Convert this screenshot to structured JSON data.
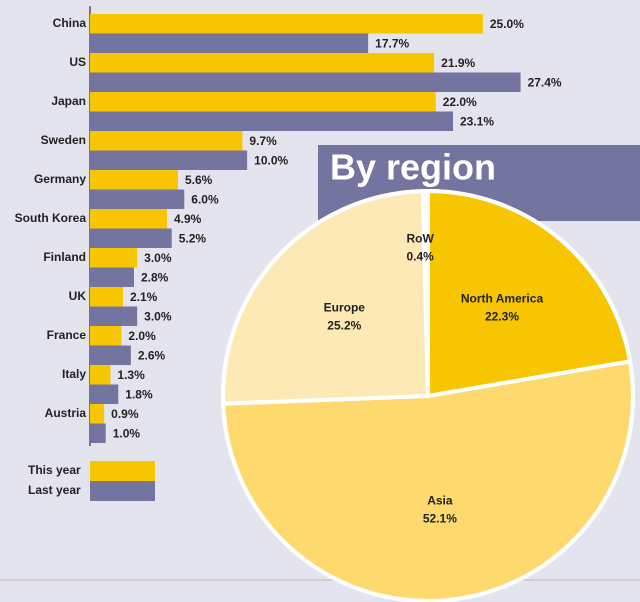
{
  "chart_data": [
    {
      "type": "bar",
      "orientation": "horizontal",
      "categories": [
        "China",
        "US",
        "Japan",
        "Sweden",
        "Germany",
        "South Korea",
        "Finland",
        "UK",
        "France",
        "Italy",
        "Austria"
      ],
      "series": [
        {
          "name": "This year",
          "color": "#f7c600",
          "values": [
            25.0,
            21.9,
            22.0,
            9.7,
            5.6,
            4.9,
            3.0,
            2.1,
            2.0,
            1.3,
            0.9
          ],
          "value_labels": [
            "25.0%",
            "21.9%",
            "22.0%",
            "9.7%",
            "5.6%",
            "4.9%",
            "3.0%",
            "2.1%",
            "2.0%",
            "1.3%",
            "0.9%"
          ]
        },
        {
          "name": "Last year",
          "color": "#7474a0",
          "values": [
            17.7,
            27.4,
            23.1,
            10.0,
            6.0,
            5.2,
            2.8,
            3.0,
            2.6,
            1.8,
            1.0
          ],
          "value_labels": [
            "17.7%",
            "27.4%",
            "23.1%",
            "10.0%",
            "6.0%",
            "5.2%",
            "2.8%",
            "3.0%",
            "2.6%",
            "1.8%",
            "1.0%"
          ]
        }
      ],
      "xlim": [
        0,
        28
      ]
    },
    {
      "type": "pie",
      "title": "By region",
      "categories": [
        "North America",
        "Asia",
        "Europe",
        "RoW"
      ],
      "values": [
        22.3,
        52.1,
        25.2,
        0.4
      ],
      "value_labels": [
        "22.3%",
        "52.1%",
        "25.2%",
        "0.4%"
      ],
      "colors": [
        "#f7c600",
        "#fdd96e",
        "#fde9b6",
        "#fef4da"
      ]
    }
  ]
}
